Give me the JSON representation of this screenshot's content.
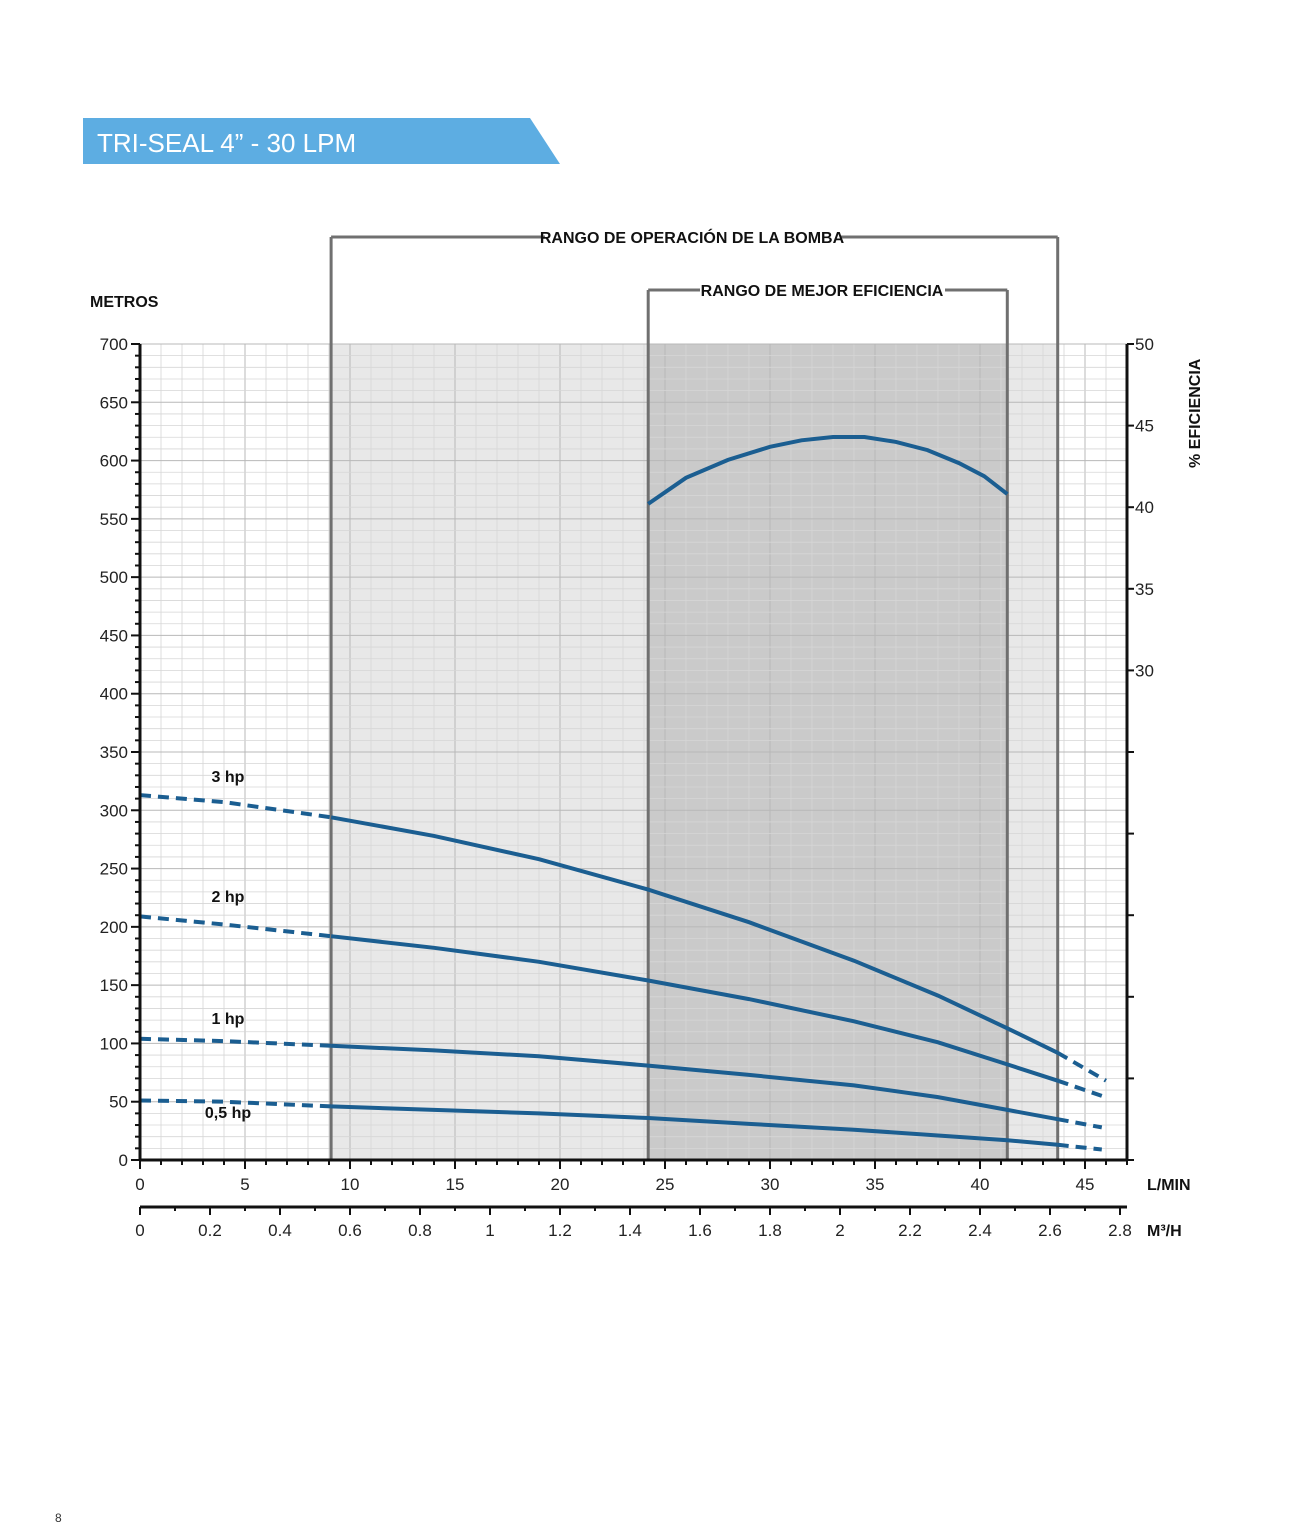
{
  "page": {
    "title": "TRI-SEAL 4” - 30 LPM",
    "page_number": "8",
    "banner_color": "#5dade2"
  },
  "chart_data": {
    "type": "line",
    "y_left": {
      "title": "METROS",
      "range": [
        0,
        700
      ],
      "ticks": [
        0,
        50,
        100,
        150,
        200,
        250,
        300,
        350,
        400,
        450,
        500,
        550,
        600,
        650,
        700
      ]
    },
    "y_right": {
      "title": "% EFICIENCIA",
      "range": [
        0,
        50
      ],
      "ticks": [
        30,
        35,
        40,
        45,
        50
      ]
    },
    "x_lpm": {
      "title": "L/MIN",
      "range": [
        0,
        47
      ],
      "ticks": [
        0,
        5,
        10,
        15,
        20,
        25,
        30,
        35,
        40,
        45
      ]
    },
    "x_m3h": {
      "title": "M³/H",
      "range": [
        0,
        2.82
      ],
      "ticks": [
        "0",
        "0.2",
        "0.4",
        "0.6",
        "0.8",
        "1",
        "1.2",
        "1.4",
        "1.6",
        "1.8",
        "2",
        "2.2",
        "2.4",
        "2.6",
        "2.8"
      ]
    },
    "ranges": {
      "operation": {
        "label": "RANGO DE OPERACIÓN DE LA BOMBA",
        "from": 9.1,
        "to": 43.7
      },
      "best_efficiency": {
        "label": "RANGO DE MEJOR EFICIENCIA",
        "from": 24.2,
        "to": 41.3
      }
    },
    "series": [
      {
        "name": "3 hp",
        "color": "#1b5e91",
        "points": [
          [
            0,
            313
          ],
          [
            4,
            307
          ],
          [
            9.1,
            294
          ],
          [
            14,
            278
          ],
          [
            19,
            258
          ],
          [
            24.2,
            232
          ],
          [
            29,
            204
          ],
          [
            34,
            171
          ],
          [
            38,
            141
          ],
          [
            41.3,
            113
          ],
          [
            43.7,
            92
          ],
          [
            46,
            68
          ]
        ]
      },
      {
        "name": "2 hp",
        "color": "#1b5e91",
        "points": [
          [
            0,
            209
          ],
          [
            4,
            202
          ],
          [
            9.1,
            192
          ],
          [
            14,
            182
          ],
          [
            19,
            170
          ],
          [
            24.2,
            154
          ],
          [
            29,
            138
          ],
          [
            34,
            119
          ],
          [
            38,
            101
          ],
          [
            41.3,
            82
          ],
          [
            43.7,
            68
          ],
          [
            45.8,
            55
          ]
        ]
      },
      {
        "name": "1 hp",
        "color": "#1b5e91",
        "points": [
          [
            0,
            104
          ],
          [
            4,
            102
          ],
          [
            9.1,
            98
          ],
          [
            14,
            94
          ],
          [
            19,
            89
          ],
          [
            24.2,
            81
          ],
          [
            29,
            73
          ],
          [
            34,
            64
          ],
          [
            38,
            54
          ],
          [
            41.3,
            43
          ],
          [
            43.7,
            35
          ],
          [
            45.8,
            28
          ]
        ]
      },
      {
        "name": "0,5 hp",
        "color": "#1b5e91",
        "points": [
          [
            0,
            51
          ],
          [
            4,
            50
          ],
          [
            9.1,
            46
          ],
          [
            14,
            43
          ],
          [
            19,
            40
          ],
          [
            24.2,
            36
          ],
          [
            29,
            31
          ],
          [
            34,
            26
          ],
          [
            38,
            21
          ],
          [
            41.3,
            17
          ],
          [
            43.7,
            13
          ],
          [
            45.8,
            9
          ]
        ]
      }
    ],
    "efficiency": {
      "color": "#1b5e91",
      "points": [
        [
          24.2,
          40.2
        ],
        [
          26,
          41.8
        ],
        [
          28,
          42.9
        ],
        [
          30,
          43.7
        ],
        [
          31.5,
          44.1
        ],
        [
          33,
          44.3
        ],
        [
          34.5,
          44.3
        ],
        [
          36,
          44.0
        ],
        [
          37.5,
          43.5
        ],
        [
          39,
          42.7
        ],
        [
          40.2,
          41.9
        ],
        [
          41.3,
          40.8
        ]
      ]
    },
    "grid": true
  }
}
